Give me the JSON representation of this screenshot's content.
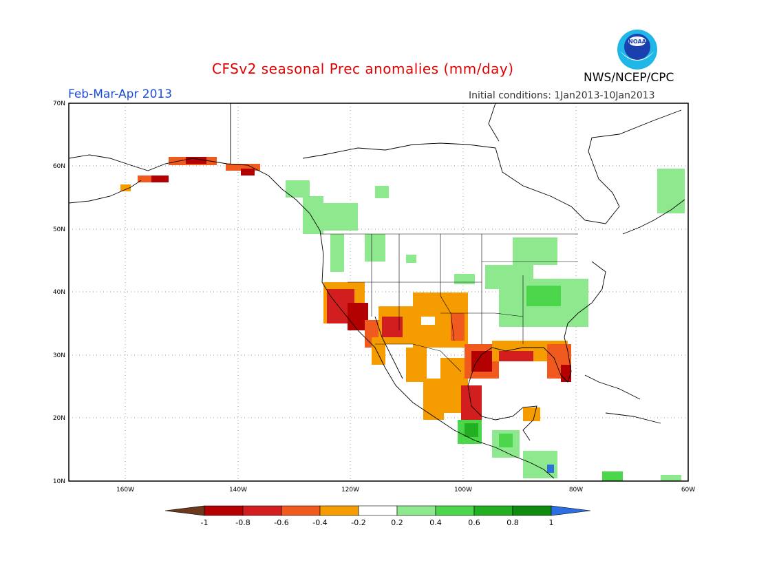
{
  "header": {
    "title": "CFSv2 seasonal Prec anomalies (mm/day)",
    "period": "Feb-Mar-Apr 2013",
    "initial_conditions": "Initial conditions: 1Jan2013-10Jan2013",
    "agency": "NWS/NCEP/CPC",
    "logo_text": "NOAA"
  },
  "axes": {
    "lat_labels": [
      "70N",
      "60N",
      "50N",
      "40N",
      "30N",
      "20N",
      "10N"
    ],
    "lon_labels": [
      "160W",
      "140W",
      "120W",
      "100W",
      "80W",
      "60W"
    ]
  },
  "colorbar": {
    "ticks": [
      "-1",
      "-0.8",
      "-0.6",
      "-0.4",
      "-0.2",
      "0.2",
      "0.4",
      "0.6",
      "0.8",
      "1"
    ],
    "colors": [
      "#6b3a1e",
      "#b30000",
      "#d21e1e",
      "#f05a1e",
      "#f59c00",
      "#ffffff",
      "#8ee88e",
      "#4cd64c",
      "#22b022",
      "#0f8c0f",
      "#2c6fe0"
    ]
  }
}
